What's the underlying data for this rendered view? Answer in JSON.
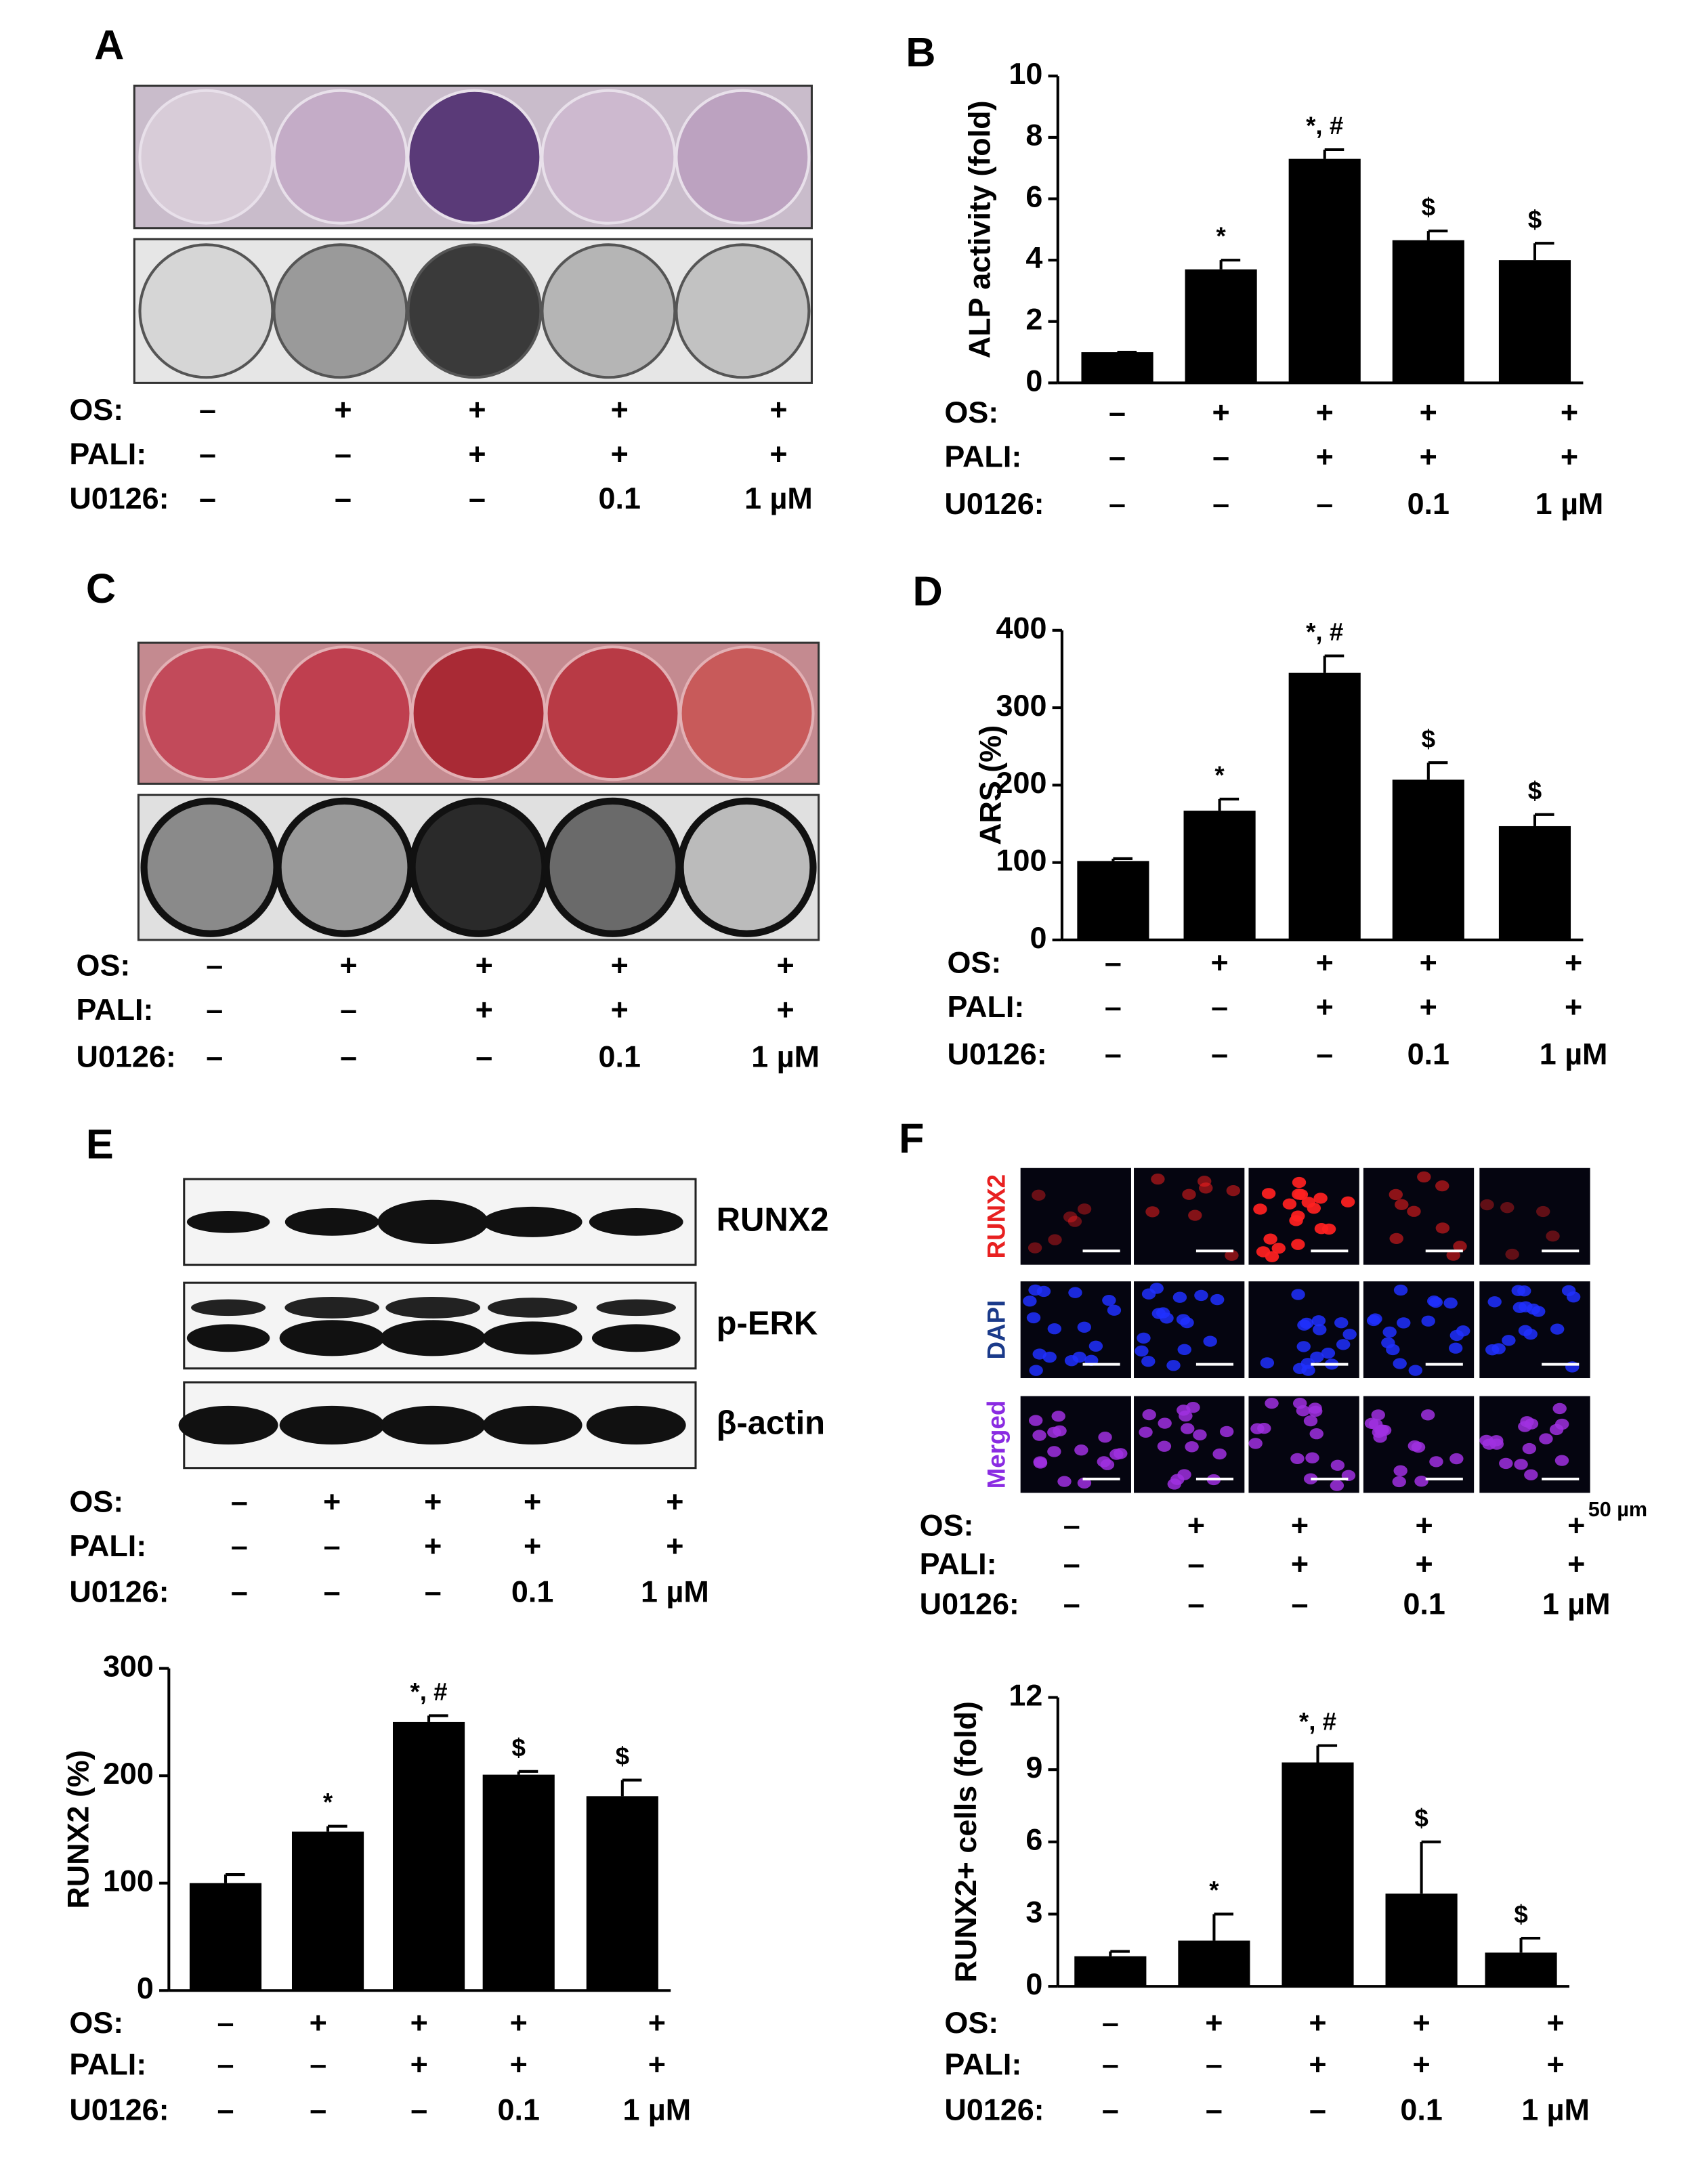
{
  "panels": {
    "letters": [
      "A",
      "B",
      "C",
      "D",
      "E",
      "F"
    ],
    "conditions": [
      {
        "label": "OS:",
        "values": [
          "–",
          "+",
          "+",
          "+",
          "+"
        ]
      },
      {
        "label": "PALI:",
        "values": [
          "–",
          "–",
          "+",
          "+",
          "+"
        ]
      },
      {
        "label": "U0126:",
        "values": [
          "–",
          "–",
          "–",
          "0.1",
          "1 µM"
        ]
      }
    ],
    "blot_labels": [
      "RUNX2",
      "p-ERK",
      "β-actin"
    ],
    "stain_labels": [
      "RUNX2",
      "DAPI",
      "Merged"
    ],
    "scale_bar": "50 µm"
  },
  "chart_data": [
    {
      "type": "bar",
      "ylabel": "ALP activity (fold)",
      "ylim": [
        0,
        10
      ],
      "yticks": [
        0,
        2,
        4,
        6,
        8,
        10
      ],
      "values": [
        1,
        3.7,
        7.3,
        4.65,
        4.0
      ],
      "errors": [
        0,
        0.3,
        0.3,
        0.3,
        0.55
      ],
      "annotations": [
        null,
        "*",
        "*, #",
        "$",
        "$"
      ],
      "color": "#000000"
    },
    {
      "type": "bar",
      "ylabel": "ARS (%)",
      "ylim": [
        0,
        400
      ],
      "yticks": [
        0,
        100,
        200,
        300,
        400
      ],
      "values": [
        102,
        167,
        345,
        207,
        147
      ],
      "errors": [
        3,
        15,
        22,
        22,
        15
      ],
      "annotations": [
        null,
        "*",
        "*, #",
        "$",
        "$"
      ],
      "color": "#000000"
    },
    {
      "type": "bar",
      "ylabel": "RUNX2 (%)",
      "ylim": [
        0,
        300
      ],
      "yticks": [
        0,
        100,
        200,
        300
      ],
      "values": [
        100,
        148,
        250,
        201,
        181
      ],
      "errors": [
        8,
        5,
        6,
        3,
        15
      ],
      "annotations": [
        null,
        "*",
        "*, #",
        "$",
        "$"
      ],
      "color": "#000000"
    },
    {
      "type": "bar",
      "ylabel": "RUNX2+ cells (fold)",
      "ylim": [
        0,
        12
      ],
      "yticks": [
        0,
        3,
        6,
        9,
        12
      ],
      "values": [
        1.25,
        1.9,
        9.3,
        3.85,
        1.4
      ],
      "errors": [
        0.2,
        1.1,
        0.7,
        2.15,
        0.6
      ],
      "annotations": [
        null,
        "*",
        "*, #",
        "$",
        "$"
      ],
      "color": "#000000"
    }
  ]
}
